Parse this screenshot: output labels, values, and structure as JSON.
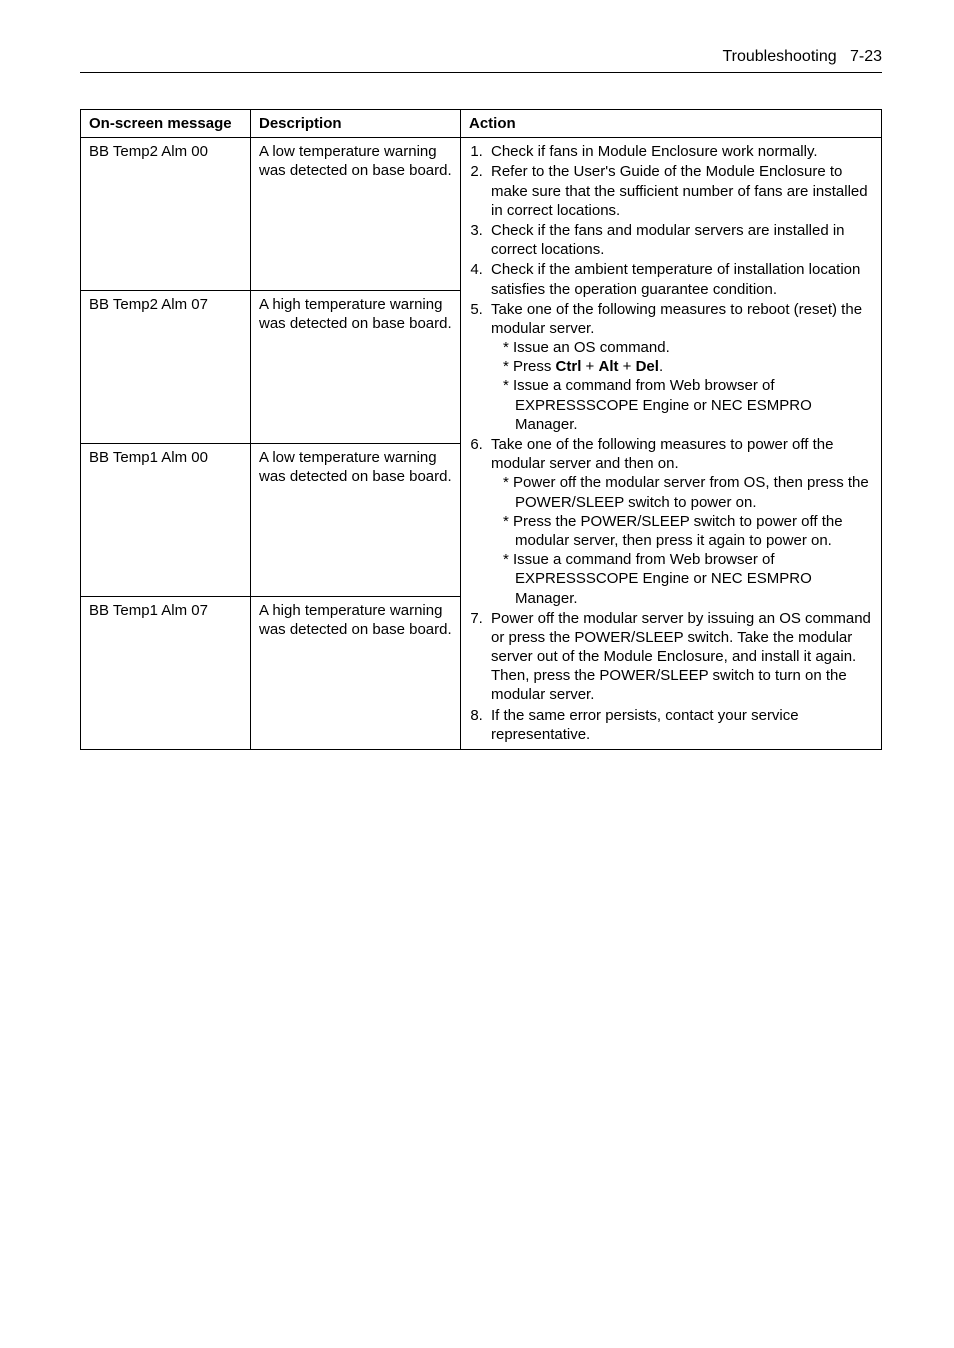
{
  "header": {
    "section": "Troubleshooting",
    "page": "7-23"
  },
  "table": {
    "columns": {
      "message": "On-screen message",
      "description": "Description",
      "action": "Action"
    },
    "rows": [
      {
        "message": "BB Temp2 Alm 00",
        "description": "A low temperature warning was detected on base board."
      },
      {
        "message": "BB Temp2 Alm 07",
        "description": "A high temperature warning was detected on base board."
      },
      {
        "message": "BB Temp1 Alm 00",
        "description": "A low temperature warning was detected on base board."
      },
      {
        "message": "BB Temp1 Alm 07",
        "description": "A high temperature warning was detected on base board."
      }
    ],
    "action": {
      "item1": "Check if fans in Module Enclosure work normally.",
      "item2": "Refer to the User's Guide of the Module Enclosure to make sure that the sufficient number of fans are installed in correct locations.",
      "item3": "Check if the fans and modular servers are installed in correct locations.",
      "item4": "Check if the ambient temperature of installation location satisfies the operation guarantee condition.",
      "item5_intro": "Take one of the following measures to reboot (reset) the modular server.",
      "item5_a": "Issue an OS command.",
      "item5_b_pre": "Press ",
      "item5_b_ctrl": "Ctrl",
      "item5_b_alt": "Alt",
      "item5_b_del": "Del",
      "item5_c": "Issue a command from Web browser of EXPRESSSCOPE Engine or NEC ESMPRO Manager.",
      "item6_intro": "Take one of the following measures to power off the modular server and then on.",
      "item6_a": "Power off the modular server from OS, then press the POWER/SLEEP switch to power on.",
      "item6_b": "Press the POWER/SLEEP switch to power off the modular server, then press it again to power on.",
      "item6_c": "Issue a command from Web browser of EXPRESSSCOPE Engine or NEC ESMPRO Manager.",
      "item7": "Power off the modular server by issuing an OS command or press the POWER/SLEEP switch. Take the modular server out of the Module Enclosure, and install it again. Then, press the POWER/SLEEP switch to turn on the modular server.",
      "item8": "If the same error persists, contact your service representative."
    }
  }
}
